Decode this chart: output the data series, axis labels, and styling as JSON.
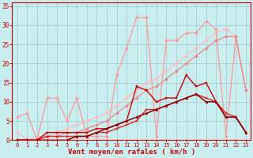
{
  "background_color": "#c8eef0",
  "grid_color": "#aacdd0",
  "text_color": "#cc0000",
  "xlabel": "Vent moyen/en rafales ( km/h )",
  "x": [
    0,
    1,
    2,
    3,
    4,
    5,
    6,
    7,
    8,
    9,
    10,
    11,
    12,
    13,
    14,
    15,
    16,
    17,
    18,
    19,
    20,
    21,
    22,
    23
  ],
  "ylim": [
    0,
    36
  ],
  "yticks": [
    0,
    5,
    10,
    15,
    20,
    25,
    30,
    35
  ],
  "series": [
    {
      "y": [
        2,
        0,
        1,
        1,
        2,
        3,
        4,
        5,
        6,
        7,
        9,
        11,
        13,
        15,
        16,
        18,
        20,
        22,
        24,
        26,
        28,
        29,
        27,
        13
      ],
      "color": "#ffbbbb",
      "lw": 0.9,
      "marker": "D",
      "ms": 2.0,
      "zorder": 2
    },
    {
      "y": [
        6,
        7,
        0,
        11,
        11,
        5,
        11,
        1,
        1,
        1,
        17,
        24,
        32,
        32,
        1,
        26,
        26,
        28,
        28,
        31,
        29,
        1,
        27,
        13
      ],
      "color": "#ff9999",
      "lw": 0.9,
      "marker": "D",
      "ms": 2.0,
      "zorder": 2
    },
    {
      "y": [
        0,
        0,
        0,
        1,
        1,
        2,
        2,
        3,
        4,
        5,
        7,
        9,
        11,
        13,
        14,
        16,
        18,
        20,
        22,
        24,
        26,
        27,
        27,
        13
      ],
      "color": "#ee8888",
      "lw": 0.9,
      "marker": "D",
      "ms": 2.0,
      "zorder": 2
    },
    {
      "y": [
        0,
        0,
        0,
        1,
        1,
        1,
        1,
        1,
        2,
        2,
        3,
        4,
        5,
        8,
        8,
        9,
        10,
        11,
        12,
        11,
        10,
        7,
        6,
        2
      ],
      "color": "#dd2222",
      "lw": 1.0,
      "marker": "s",
      "ms": 2.0,
      "zorder": 3
    },
    {
      "y": [
        0,
        0,
        0,
        2,
        2,
        2,
        2,
        2,
        3,
        3,
        4,
        5,
        14,
        13,
        10,
        11,
        11,
        17,
        14,
        15,
        10,
        6,
        6,
        2
      ],
      "color": "#cc0000",
      "lw": 1.0,
      "marker": "s",
      "ms": 2.0,
      "zorder": 3
    },
    {
      "y": [
        0,
        0,
        0,
        0,
        0,
        0,
        1,
        1,
        2,
        3,
        4,
        5,
        6,
        7,
        8,
        9,
        10,
        11,
        12,
        10,
        10,
        6,
        6,
        2
      ],
      "color": "#880000",
      "lw": 1.1,
      "marker": "^",
      "ms": 2.0,
      "zorder": 4
    }
  ],
  "figsize": [
    3.2,
    2.0
  ],
  "dpi": 100
}
